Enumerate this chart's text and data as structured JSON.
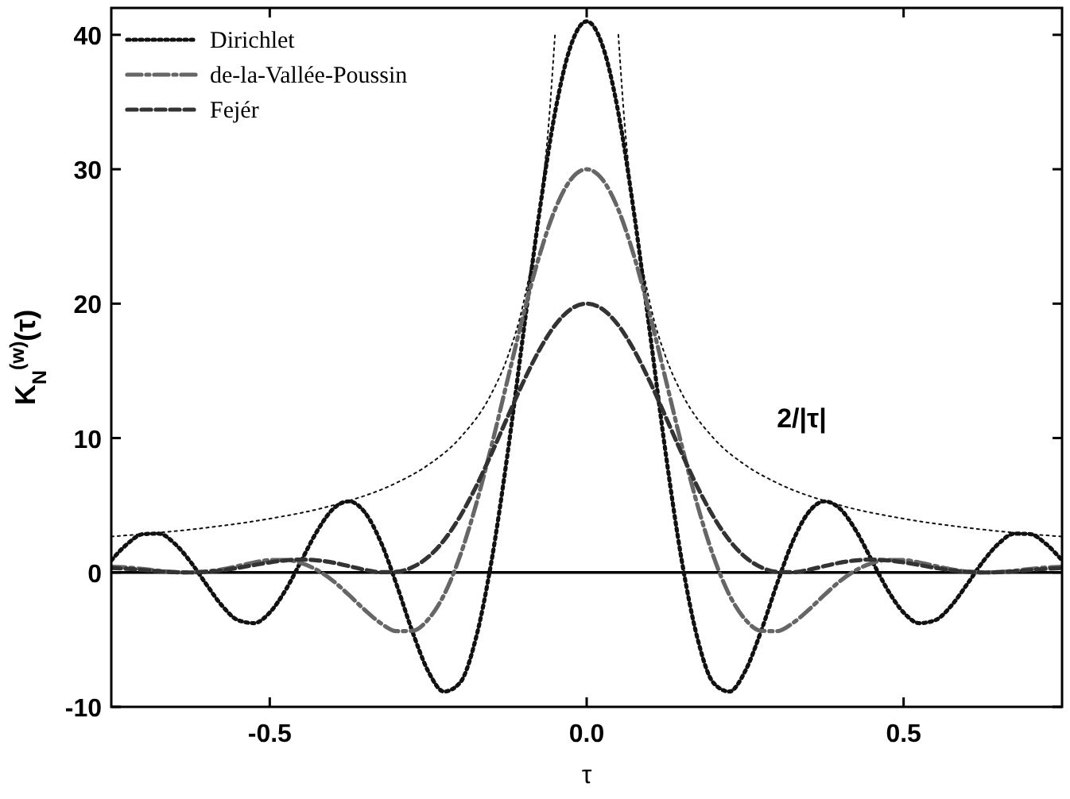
{
  "chart_data": {
    "type": "line",
    "xlabel": "τ",
    "ylabel": "K$_{N}$$^{(w)}$(τ)",
    "x": [
      -0.75,
      -0.725,
      -0.7,
      -0.675,
      -0.65,
      -0.625,
      -0.6,
      -0.575,
      -0.55,
      -0.525,
      -0.5,
      -0.475,
      -0.45,
      -0.425,
      -0.4,
      -0.375,
      -0.35,
      -0.325,
      -0.3,
      -0.275,
      -0.25,
      -0.225,
      -0.2,
      -0.175,
      -0.15,
      -0.125,
      -0.1,
      -0.075,
      -0.05,
      -0.025,
      0,
      0.025,
      0.05,
      0.075,
      0.1,
      0.125,
      0.15,
      0.175,
      0.2,
      0.225,
      0.25,
      0.275,
      0.3,
      0.325,
      0.35,
      0.375,
      0.4,
      0.425,
      0.45,
      0.475,
      0.5,
      0.525,
      0.55,
      0.575,
      0.6,
      0.625,
      0.65,
      0.675,
      0.7,
      0.725,
      0.75
    ],
    "series": [
      {
        "name": "Dirichlet",
        "color": "#111111",
        "line_style": "dotted",
        "values": [
          0.9,
          2.11,
          2.85,
          2.89,
          2.15,
          0.79,
          -0.89,
          -2.49,
          -3.55,
          -3.77,
          -2.98,
          -1.31,
          0.89,
          3.1,
          4.73,
          5.29,
          4.47,
          2.29,
          -0.89,
          -4.39,
          -7.35,
          -8.86,
          -8.21,
          -4.94,
          0.89,
          8.76,
          17.76,
          26.65,
          34.2,
          39.2,
          41,
          39.2,
          34.2,
          26.65,
          17.76,
          8.76,
          0.89,
          -4.94,
          -8.21,
          -8.86,
          -7.35,
          -4.39,
          -0.89,
          2.29,
          4.47,
          5.29,
          4.73,
          3.1,
          0.89,
          -1.31,
          -2.98,
          -3.77,
          -3.55,
          -2.49,
          -0.89,
          0.79,
          2.15,
          2.89,
          2.85,
          2.11,
          0.9
        ]
      },
      {
        "name": "de-la-Vallée-Poussin",
        "color": "#666666",
        "line_style": "dashdot",
        "values": [
          0.42,
          0.37,
          0.26,
          0.13,
          0.03,
          0,
          0.07,
          0.23,
          0.48,
          0.74,
          0.92,
          0.93,
          0.7,
          0.17,
          -0.63,
          -1.68,
          -2.79,
          -3.77,
          -4.37,
          -4.34,
          -3.49,
          -1.66,
          1.2,
          4.97,
          9.45,
          14.3,
          19.14,
          23.5,
          26.99,
          29.23,
          30,
          29.23,
          26.99,
          23.5,
          19.14,
          14.3,
          9.45,
          4.97,
          1.2,
          -1.66,
          -3.49,
          -4.34,
          -4.37,
          -3.77,
          -2.79,
          -1.68,
          -0.63,
          0.17,
          0.7,
          0.93,
          0.92,
          0.74,
          0.48,
          0.23,
          0.07,
          0,
          0.03,
          0.13,
          0.26,
          0.37,
          0.42
        ]
      },
      {
        "name": "Fejér",
        "color": "#333333",
        "line_style": "dashed",
        "values": [
          0.33,
          0.27,
          0.18,
          0.09,
          0.02,
          0,
          0.05,
          0.16,
          0.34,
          0.55,
          0.75,
          0.9,
          0.96,
          0.9,
          0.73,
          0.47,
          0.2,
          0.02,
          0.05,
          0.39,
          1.15,
          2.4,
          4.15,
          6.34,
          8.86,
          11.54,
          14.17,
          16.52,
          18.39,
          19.59,
          20,
          19.59,
          18.39,
          16.52,
          14.17,
          11.54,
          8.86,
          6.34,
          4.15,
          2.4,
          1.15,
          0.39,
          0.05,
          0.02,
          0.2,
          0.47,
          0.73,
          0.9,
          0.96,
          0.9,
          0.75,
          0.55,
          0.34,
          0.16,
          0.05,
          0,
          0.02,
          0.09,
          0.18,
          0.27,
          0.33
        ]
      },
      {
        "color": "#111111",
        "line_style": "dotted",
        "x": [
          -0.75,
          -0.6,
          -0.5,
          -0.4,
          -0.3,
          -0.25,
          -0.2,
          -0.15,
          -0.125,
          -0.1,
          -0.075,
          -0.06,
          -0.05,
          0,
          0.05,
          0.06,
          0.075,
          0.1,
          0.125,
          0.15,
          0.2,
          0.25,
          0.3,
          0.4,
          0.5,
          0.6,
          0.75
        ],
        "values": [
          2.67,
          3.33,
          4,
          5,
          6.67,
          8,
          10,
          13.33,
          16,
          20,
          26.67,
          33.33,
          40,
          null,
          40,
          33.33,
          26.67,
          20,
          16,
          13.33,
          10,
          8,
          6.67,
          5,
          4,
          3.33,
          2.67
        ]
      }
    ],
    "annotations": [
      "2/|τ|"
    ],
    "ref_lines": [
      {
        "axis": "y",
        "value": 0,
        "color": "#000000",
        "line_style": "solid"
      }
    ],
    "xlim": [
      -0.75,
      0.75
    ],
    "xticks": [
      -0.5,
      {
        "value": 0,
        "label": "0.0"
      },
      0.5
    ],
    "ylim": [
      -10,
      42
    ],
    "yticks": [
      -10,
      0,
      10,
      20,
      30,
      40
    ],
    "legend": "top left",
    "grid": false
  }
}
